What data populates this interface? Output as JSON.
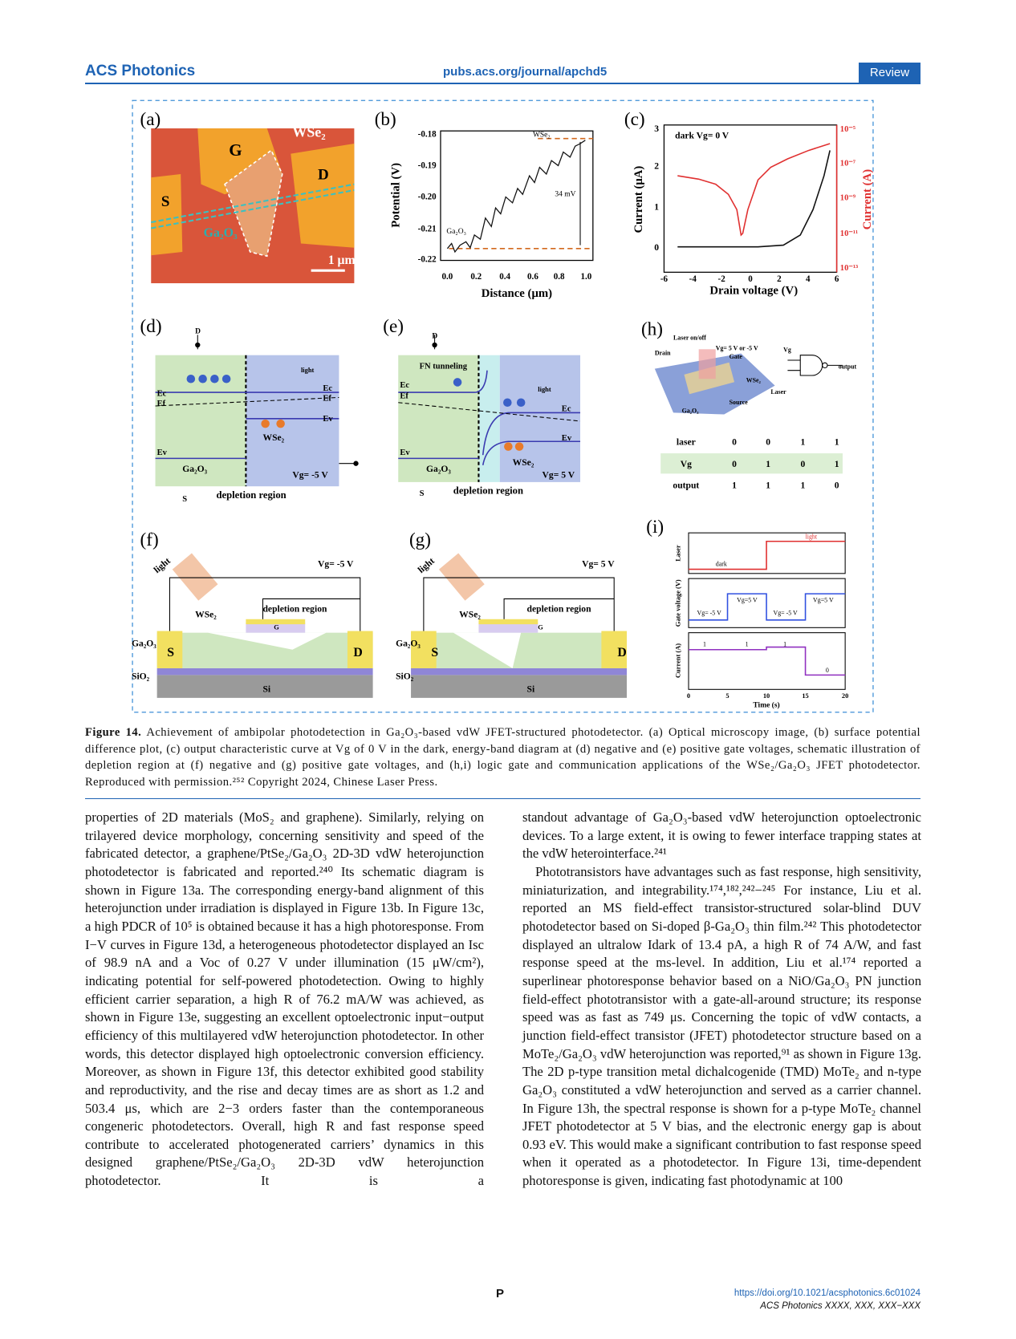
{
  "header": {
    "journal": "ACS Photonics",
    "url": "pubs.acs.org/journal/apchd5",
    "tag": "Review"
  },
  "figure": {
    "a": {
      "label": "(a)",
      "texts": [
        "G",
        "WSe₂",
        "D",
        "S",
        "Ga₂O₃",
        "1 μm"
      ]
    },
    "b": {
      "label": "(b)",
      "y_label": "Potential (V)",
      "x_label": "Distance (μm)",
      "y_ticks": [
        "-0.18",
        "-0.19",
        "-0.20",
        "-0.21",
        "-0.22"
      ],
      "x_ticks": [
        "0.0",
        "0.2",
        "0.4",
        "0.6",
        "0.8",
        "1.0"
      ],
      "annotations": [
        "WSe₂",
        "Ga₂O₃",
        "34 mV"
      ]
    },
    "c": {
      "label": "(c)",
      "y_label": "Current (μA)",
      "y2_label": "Current (A)",
      "x_label": "Drain voltage (V)",
      "y_ticks": [
        "0",
        "1",
        "2",
        "3"
      ],
      "y2_ticks": [
        "10⁻⁵",
        "10⁻⁷",
        "10⁻⁹",
        "10⁻¹¹",
        "10⁻¹³"
      ],
      "x_ticks": [
        "-6",
        "-4",
        "-2",
        "0",
        "2",
        "4",
        "6"
      ],
      "annotation": "dark Vg= 0 V"
    },
    "d": {
      "label": "(d)",
      "texts": [
        "D",
        "light",
        "Ec",
        "Ef",
        "Ec",
        "Ef",
        "Ev",
        "WSe₂",
        "Ev",
        "Ga₂O₃",
        "Vg= -5 V",
        "S",
        "depletion region"
      ]
    },
    "e": {
      "label": "(e)",
      "texts": [
        "D",
        "FN tunneling",
        "light",
        "Ec",
        "Ef",
        "Ec",
        "Ev",
        "Ev",
        "WSe₂",
        "Ga₂O₃",
        "Vg= 5 V",
        "S",
        "depletion region"
      ]
    },
    "h": {
      "label": "(h)",
      "texts": [
        "Laser on/off",
        "Drain",
        "Vg= 5 V or -5 V",
        "Gate",
        "WSe₂",
        "Source",
        "Ga₂O₃",
        "Vg",
        "Laser",
        "output"
      ],
      "table": [
        [
          "laser",
          "0",
          "0",
          "1",
          "1"
        ],
        [
          "Vg",
          "0",
          "1",
          "0",
          "1"
        ],
        [
          "output",
          "1",
          "1",
          "1",
          "0"
        ]
      ]
    },
    "f": {
      "label": "(f)",
      "texts": [
        "light",
        "Vg= -5 V",
        "WSe₂",
        "depletion region",
        "G",
        "Ga₂O₃",
        "S",
        "D",
        "SiO₂",
        "Si"
      ]
    },
    "g": {
      "label": "(g)",
      "texts": [
        "light",
        "Vg= 5 V",
        "WSe₂",
        "depletion region",
        "G",
        "Ga₂O₃",
        "S",
        "D",
        "SiO₂",
        "Si"
      ]
    },
    "i": {
      "label": "(i)",
      "y_labels": [
        "Laser",
        "Gate voltage (V)",
        "Current (A)"
      ],
      "x_label": "Time (s)",
      "x_ticks": [
        "0",
        "5",
        "10",
        "15",
        "20"
      ],
      "texts": [
        "light",
        "dark",
        "Vg= -5 V",
        "Vg=5 V",
        "Vg= -5 V",
        "Vg=5 V",
        "1",
        "1",
        "1",
        "0"
      ]
    }
  },
  "caption": {
    "label": "Figure 14.",
    "text": "Achievement of ambipolar photodetection in Ga₂O₃-based vdW JFET-structured photodetector. (a) Optical microscopy image, (b) surface potential difference plot, (c) output characteristic curve at Vg of 0 V in the dark, energy-band diagram at (d) negative and (e) positive gate voltages, schematic illustration of depletion region at (f) negative and (g) positive gate voltages, and (h,i) logic gate and communication applications of the WSe₂/Ga₂O₃ JFET photodetector. Reproduced with permission.²⁵² Copyright 2024, Chinese Laser Press."
  },
  "body": {
    "left": [
      "properties of 2D materials (MoS₂ and graphene). Similarly, relying on trilayered device morphology, concerning sensitivity and speed of the fabricated detector, a graphene/PtSe₂/Ga₂O₃ 2D-3D vdW heterojunction photodetector is fabricated and reported.²⁴⁰ Its schematic diagram is shown in Figure 13a. The corresponding energy-band alignment of this heterojunction under irradiation is displayed in Figure 13b. In Figure 13c, a high PDCR of 10⁵ is obtained because it has a high photoresponse. From I−V curves in Figure 13d, a heterogeneous photodetector displayed an Isc of 98.9 nA and a Voc of 0.27 V under illumination (15 μW/cm²), indicating potential for self-powered photodetection. Owing to highly efficient carrier separation, a high R of 76.2 mA/W was achieved, as shown in Figure 13e, suggesting an excellent optoelectronic input−output efficiency of this multilayered vdW heterojunction photodetector. In other words, this detector displayed high optoelectronic conversion efficiency. Moreover, as shown in Figure 13f, this detector exhibited good stability and reproductivity, and the rise and decay times are as short as 1.2 and 503.4 μs, which are 2−3 orders faster than the contemporaneous congeneric photodetectors. Overall, high R and fast response speed contribute to accelerated photogenerated carriers’ dynamics in this designed graphene/PtSe₂/Ga₂O₃ 2D-3D vdW heterojunction photodetector. It is a"
    ],
    "right": [
      "standout advantage of Ga₂O₃-based vdW heterojunction optoelectronic devices. To a large extent, it is owing to fewer interface trapping states at the vdW heterointerface.²⁴¹",
      "Phototransistors have advantages such as fast response, high sensitivity, miniaturization, and integrability.¹⁷⁴,¹⁸²,²⁴²−²⁴⁵ For instance, Liu et al. reported an MS field-effect transistor-structured solar-blind DUV photodetector based on Si-doped β-Ga₂O₃ thin film.²⁴² This photodetector displayed an ultralow Idark of 13.4 pA, a high R of 74 A/W, and fast response speed at the ms-level. In addition, Liu et al.¹⁷⁴ reported a superlinear photoresponse behavior based on a NiO/Ga₂O₃ PN junction field-effect phototransistor with a gate-all-around structure; its response speed was as fast as 749 μs. Concerning the topic of vdW contacts, a junction field-effect transistor (JFET) photodetector structure based on a MoTe₂/Ga₂O₃ vdW heterojunction was reported,⁹¹ as shown in Figure 13g. The 2D p-type transition metal dichalcogenide (TMD) MoTe₂ and n-type Ga₂O₃ constituted a vdW heterojunction and served as a carrier channel. In Figure 13h, the spectral response is shown for a p-type MoTe₂ channel JFET photodetector at 5 V bias, and the electronic energy gap is about 0.93 eV. This would make a significant contribution to fast response speed when it operated as a photodetector. In Figure 13i, time-dependent photoresponse is given, indicating fast photodynamic at 100"
    ]
  },
  "footer": {
    "page": "P",
    "doi": "https://doi.org/10.1021/acsphotonics.6c01024",
    "citation": "ACS Photonics XXXX, XXX, XXX−XXX"
  }
}
